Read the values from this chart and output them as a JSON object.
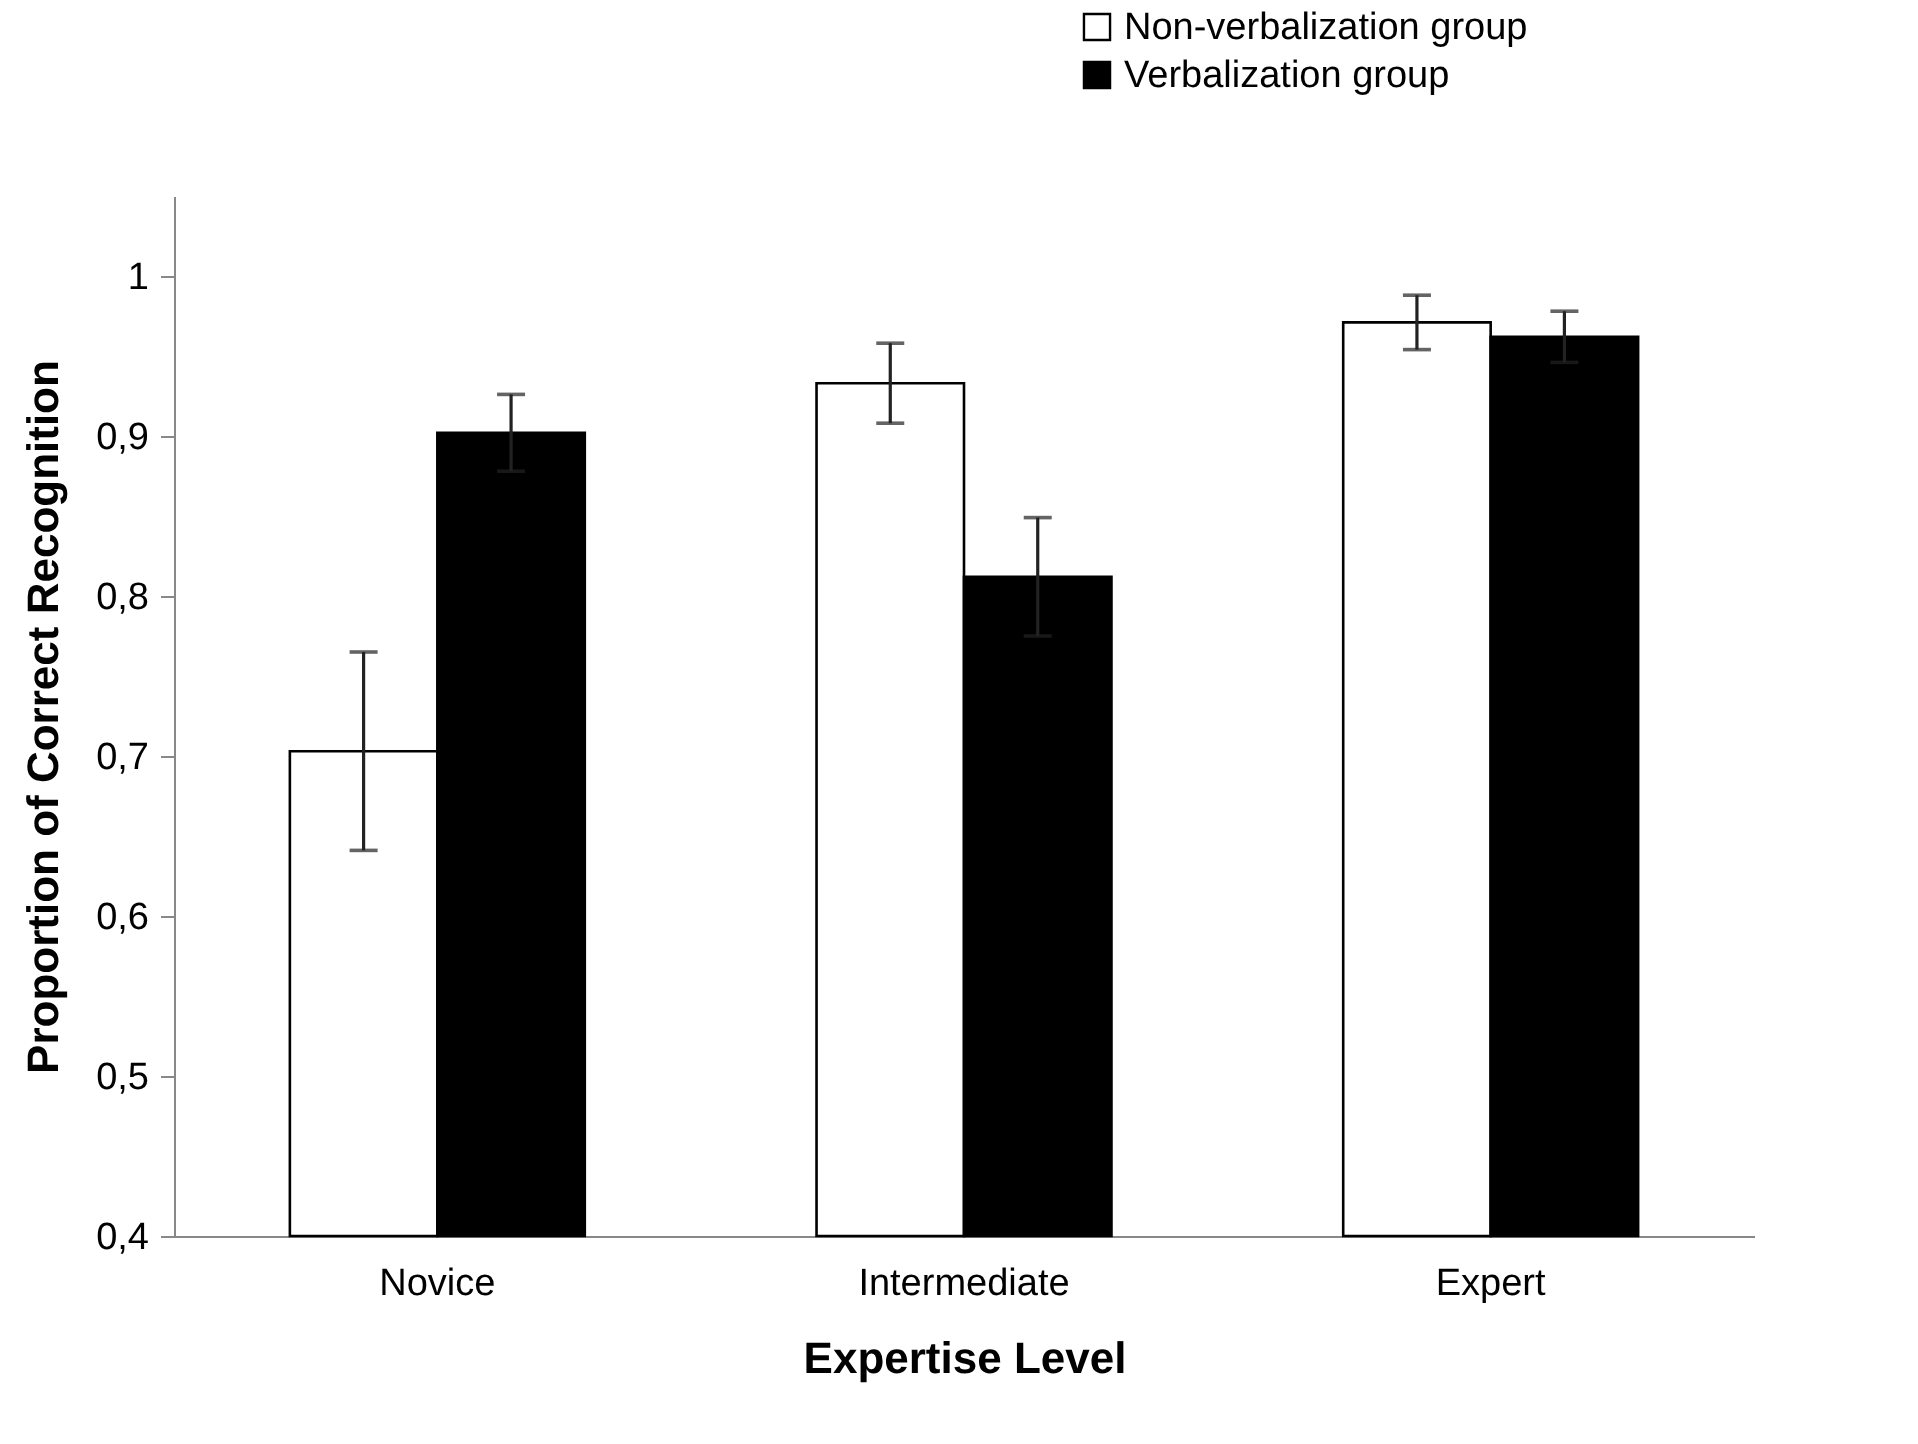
{
  "chart_data": {
    "type": "bar",
    "xlabel": "Expertise Level",
    "ylabel": "Proportion of Correct Recognition",
    "categories": [
      "Novice",
      "Intermediate",
      "Expert"
    ],
    "series": [
      {
        "name": "Non-verbalization group",
        "color": "#ffffff",
        "values": [
          0.703,
          0.933,
          0.971
        ],
        "errors": [
          0.062,
          0.025,
          0.017
        ]
      },
      {
        "name": "Verbalization group",
        "color": "#000000",
        "values": [
          0.902,
          0.812,
          0.962
        ],
        "errors": [
          0.024,
          0.037,
          0.016
        ]
      }
    ],
    "ylim": [
      0.4,
      1.05
    ],
    "yticks": [
      {
        "value": 0.4,
        "label": "0,4"
      },
      {
        "value": 0.5,
        "label": "0,5"
      },
      {
        "value": 0.6,
        "label": "0,6"
      },
      {
        "value": 0.7,
        "label": "0,7"
      },
      {
        "value": 0.8,
        "label": "0,8"
      },
      {
        "value": 0.9,
        "label": "0,9"
      },
      1
    ],
    "grid": false,
    "legend": "top right"
  }
}
